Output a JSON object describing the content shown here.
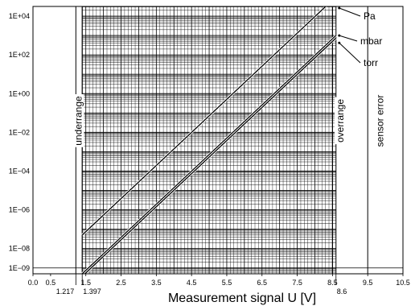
{
  "chart_data": {
    "type": "line",
    "xlabel": "Measurement signal U [V]",
    "ylabel": "",
    "xlim": [
      0,
      10.5
    ],
    "ylim_exp": [
      -9.3,
      4.5
    ],
    "y_scale": "log",
    "grid": true,
    "x_ticks": [
      "0.0",
      "0.5",
      "1.5",
      "2.5",
      "3.5",
      "4.5",
      "5.5",
      "6.5",
      "7.5",
      "8.5",
      "9.5",
      "10.5"
    ],
    "x_tick_values": [
      0,
      0.5,
      1.5,
      2.5,
      3.5,
      4.5,
      5.5,
      6.5,
      7.5,
      8.5,
      9.5,
      10.5
    ],
    "x_extra_ticks": [
      {
        "value": 1.217,
        "label": "1.217"
      },
      {
        "value": 1.397,
        "label": "1.397"
      },
      {
        "value": 8.6,
        "label": "8.6"
      }
    ],
    "y_ticks": [
      "1E+04",
      "1E+02",
      "1E+00",
      "1E−02",
      "1E−04",
      "1E−06",
      "1E−08",
      "1E−09"
    ],
    "y_tick_exponents": [
      4,
      2,
      0,
      -2,
      -4,
      -6,
      -8,
      -9
    ],
    "zones": [
      {
        "name": "underrange",
        "label": "underrange",
        "x": 1.217
      },
      {
        "name": "overrange",
        "label": "overrange",
        "x": 8.6
      },
      {
        "name": "sensor-error",
        "label": "sensor error",
        "x": 9.5
      }
    ],
    "series": [
      {
        "name": "Pa",
        "label": "Pa",
        "x": [
          1.397,
          8.6
        ],
        "y_exp": [
          -7.3,
          5.0
        ]
      },
      {
        "name": "mbar",
        "label": "mbar",
        "x": [
          1.397,
          8.6
        ],
        "y_exp": [
          -9.3,
          3.0
        ]
      },
      {
        "name": "torr",
        "label": "torr",
        "x": [
          1.397,
          8.6
        ],
        "y_exp": [
          -9.43,
          2.87
        ]
      }
    ]
  }
}
